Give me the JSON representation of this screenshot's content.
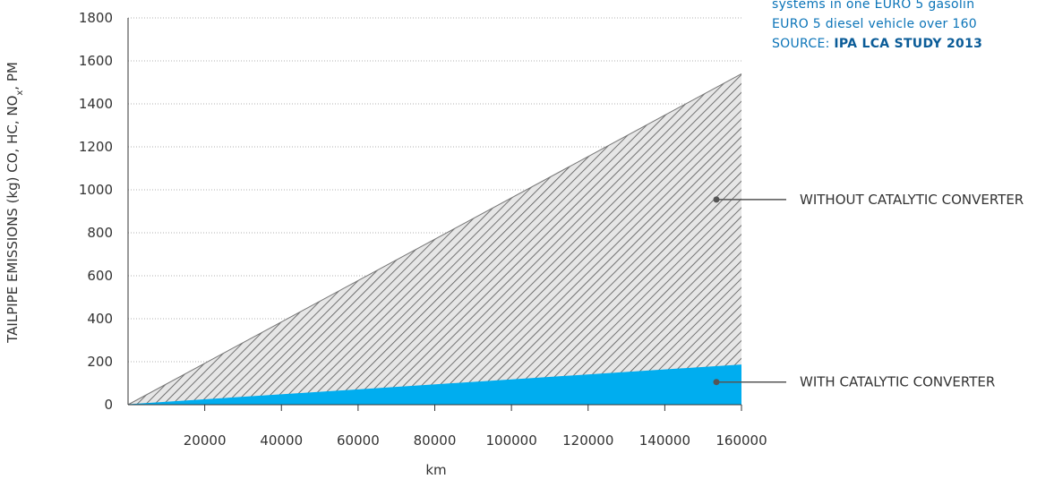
{
  "chart_data": {
    "type": "area",
    "ylabel": "TAILPIPE EMISSIONS (kg)  CO, HC, NO",
    "ylabel_sub": "x",
    "ylabel_tail": ", PM",
    "xlabel": "km",
    "xlim": [
      0,
      160000
    ],
    "ylim": [
      0,
      1800
    ],
    "xticks": [
      20000,
      40000,
      60000,
      80000,
      100000,
      120000,
      140000,
      160000
    ],
    "yticks": [
      0,
      200,
      400,
      600,
      800,
      1000,
      1200,
      1400,
      1600,
      1800
    ],
    "grid": "horizontal dotted",
    "series": [
      {
        "name": "WITHOUT CATALYTIC CONVERTER",
        "x": [
          0,
          160000
        ],
        "y": [
          0,
          1540
        ],
        "fill": "hatched",
        "color": "#555555"
      },
      {
        "name": "WITH CATALYTIC CONVERTER",
        "x": [
          0,
          160000
        ],
        "y": [
          0,
          185
        ],
        "fill": "solid",
        "color": "#00adef"
      }
    ],
    "legend_placement": "right, pointer lines"
  },
  "note": {
    "line1": "systems in one EURO 5 gasolin",
    "line2": "EURO 5 diesel vehicle over 160",
    "source_label": "SOURCE: ",
    "source_value": "IPA LCA STUDY 2013"
  },
  "colors": {
    "accent": "#00adef",
    "hatch": "#555555",
    "text": "#333333",
    "note": "#0b74b8"
  }
}
